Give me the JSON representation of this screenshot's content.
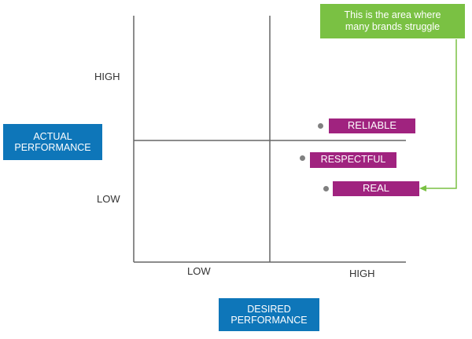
{
  "colors": {
    "axis_line": "#666666",
    "axis_label_bg": "#0e76b9",
    "tag_bg": "#a0237f",
    "marker": "#808080",
    "callout_bg": "#7ac143",
    "callout_arrow": "#7ac143",
    "tick_text": "#333333"
  },
  "y_axis": {
    "title_line1": "ACTUAL",
    "title_line2": "PERFORMANCE",
    "high_label": "HIGH",
    "low_label": "LOW"
  },
  "x_axis": {
    "title_line1": "DESIRED",
    "title_line2": "PERFORMANCE",
    "low_label": "LOW",
    "high_label": "HIGH"
  },
  "items": [
    {
      "label": "RELIABLE"
    },
    {
      "label": "RESPECTFUL"
    },
    {
      "label": "REAL"
    }
  ],
  "callout": {
    "line1": "This is the area where",
    "line2": "many brands struggle",
    "target": "REAL"
  }
}
